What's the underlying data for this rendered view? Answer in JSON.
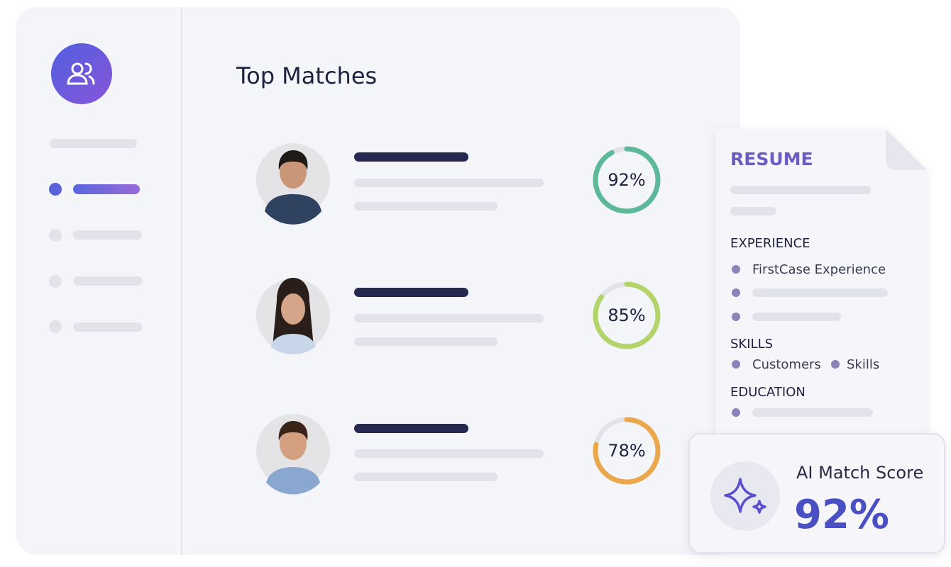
{
  "main": {
    "title": "Top Matches"
  },
  "matches": [
    {
      "score": 92,
      "score_label": "92%",
      "color": "#5cb898"
    },
    {
      "score": 85,
      "score_label": "85%",
      "color": "#b3d46a"
    },
    {
      "score": 78,
      "score_label": "78%",
      "color": "#eaa74b"
    }
  ],
  "resume": {
    "title": "RESUME",
    "experience": {
      "heading": "EXPERIENCE",
      "items": [
        "FirstCase Experience"
      ]
    },
    "skills": {
      "heading": "SKILLS",
      "items": [
        "Customers",
        "Skills"
      ]
    },
    "education": {
      "heading": "EDUCATION"
    }
  },
  "ai_card": {
    "label": "AI Match Score",
    "score_label": "92%"
  }
}
